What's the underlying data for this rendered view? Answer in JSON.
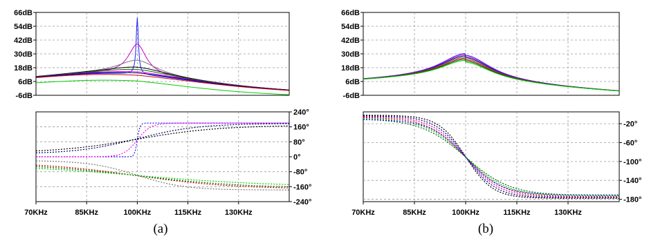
{
  "figure": {
    "panel_labels": [
      "(a)",
      "(b)"
    ]
  },
  "chart_data": [
    {
      "panel": "(a)",
      "type": "line",
      "x_ticks": [
        "70KHz",
        "85KHz",
        "100KHz",
        "115KHz",
        "130KHz"
      ],
      "x_tick_values": [
        70,
        85,
        100,
        115,
        130
      ],
      "xlim": [
        70,
        145
      ],
      "grid": true,
      "magnitude": {
        "ylim": [
          -6,
          66
        ],
        "y_ticks": [
          "66dB",
          "54dB",
          "42dB",
          "30dB",
          "18dB",
          "6dB",
          "-6dB"
        ],
        "y_tick_values": [
          66,
          54,
          42,
          30,
          18,
          6,
          -6
        ],
        "series": [
          {
            "color": "#2020ff",
            "peak": 61,
            "width": 0.4
          },
          {
            "color": "#cc00cc",
            "peak": 38,
            "width": 3.2
          },
          {
            "color": "#777777",
            "peak": 24,
            "width": 7
          },
          {
            "color": "#000000",
            "peak": 18,
            "width": 11
          },
          {
            "color": "#006600",
            "peak": 16,
            "width": 12
          },
          {
            "color": "#ff00ff",
            "peak": 14,
            "width": 14
          },
          {
            "color": "#000066",
            "peak": 13,
            "width": 16
          },
          {
            "color": "#cc0000",
            "peak": 11,
            "width": 21
          },
          {
            "color": "#00cc00",
            "peak": 6,
            "width": 60
          }
        ]
      },
      "phase": {
        "ylim": [
          -240,
          240
        ],
        "y_ticks": [
          "240°",
          "160°",
          "80°",
          "0°",
          "-80°",
          "-160°",
          "-240°"
        ],
        "y_tick_values": [
          240,
          160,
          80,
          0,
          -80,
          -160,
          -240
        ],
        "series": [
          {
            "color": "#2020ff",
            "start": 0,
            "end": 180,
            "width": 0.4
          },
          {
            "color": "#ff00ff",
            "start": 0,
            "end": 180,
            "width": 2
          },
          {
            "color": "#000066",
            "start": 15,
            "end": 178,
            "width": 9
          },
          {
            "color": "#000000",
            "start": 20,
            "end": 168,
            "width": 12
          },
          {
            "color": "#777777",
            "start": -20,
            "end": -178,
            "width": 7
          },
          {
            "color": "#cc0000",
            "start": -30,
            "end": -172,
            "width": 14
          },
          {
            "color": "#006600",
            "start": -35,
            "end": -168,
            "width": 16
          },
          {
            "color": "#00cc00",
            "start": -40,
            "end": -160,
            "width": 20
          }
        ]
      }
    },
    {
      "panel": "(b)",
      "type": "line",
      "x_ticks": [
        "70KHz",
        "85KHz",
        "100KHz",
        "115KHz",
        "130KHz"
      ],
      "x_tick_values": [
        70,
        85,
        100,
        115,
        130
      ],
      "xlim": [
        70,
        145
      ],
      "grid": true,
      "magnitude": {
        "ylim": [
          -6,
          66
        ],
        "y_ticks": [
          "66dB",
          "54dB",
          "42dB",
          "30dB",
          "18dB",
          "6dB",
          "-6dB"
        ],
        "y_tick_values": [
          66,
          54,
          42,
          30,
          18,
          6,
          -6
        ],
        "series": [
          {
            "color": "#2020ff",
            "peak": 29
          },
          {
            "color": "#cc00cc",
            "peak": 28
          },
          {
            "color": "#000066",
            "peak": 27
          },
          {
            "color": "#777777",
            "peak": 26
          },
          {
            "color": "#cc0000",
            "peak": 25
          },
          {
            "color": "#006600",
            "peak": 24
          },
          {
            "color": "#00cc00",
            "peak": 23
          }
        ]
      },
      "phase": {
        "ylim": [
          -185,
          5
        ],
        "y_ticks": [
          "-20°",
          "-60°",
          "-100°",
          "-140°",
          "-180°"
        ],
        "y_tick_values": [
          -20,
          -60,
          -100,
          -140,
          -180
        ],
        "series": [
          {
            "color": "#000000",
            "width": 4.0
          },
          {
            "color": "#000066",
            "width": 4.5
          },
          {
            "color": "#cc00cc",
            "width": 5.0
          },
          {
            "color": "#cc0000",
            "width": 5.5
          },
          {
            "color": "#00cc00",
            "width": 6.0
          },
          {
            "color": "#006600",
            "width": 6.5
          },
          {
            "color": "#2020ff",
            "width": 5.2
          }
        ]
      }
    }
  ]
}
